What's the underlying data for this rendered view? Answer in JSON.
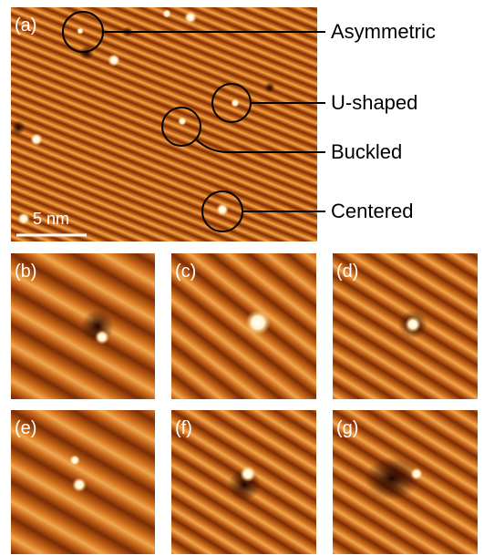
{
  "panels": [
    {
      "label": "(a)"
    },
    {
      "label": "(b)"
    },
    {
      "label": "(c)"
    },
    {
      "label": "(d)"
    },
    {
      "label": "(e)"
    },
    {
      "label": "(f)"
    },
    {
      "label": "(g)"
    }
  ],
  "scale_bar": "5 nm",
  "annotations": [
    "Asymmetric",
    "U-shaped",
    "Buckled",
    "Centered"
  ]
}
